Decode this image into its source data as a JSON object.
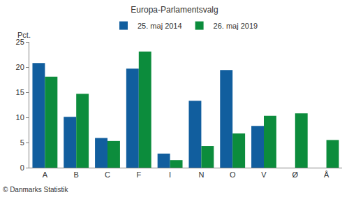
{
  "chart_data": {
    "type": "bar",
    "title": "Europa-Parlamentsvalg",
    "ylabel": "Pct.",
    "annotations": [
      {
        "text": "© Danmarks Statistik"
      }
    ],
    "categories": [
      "A",
      "B",
      "C",
      "F",
      "I",
      "N",
      "O",
      "V",
      "Ø",
      "Å"
    ],
    "series": [
      {
        "name": "25. maj 2014",
        "color": "#115e9e",
        "values": [
          20.8,
          10.1,
          5.9,
          19.7,
          2.8,
          13.3,
          19.4,
          8.3,
          null,
          null
        ]
      },
      {
        "name": "26. maj 2019",
        "color": "#0c8c3c",
        "values": [
          18.1,
          14.7,
          5.3,
          23.1,
          1.5,
          4.3,
          6.8,
          10.3,
          10.8,
          5.5
        ]
      }
    ],
    "ylim": [
      0,
      25
    ],
    "yticks": [
      0,
      5,
      10,
      15,
      20,
      25
    ],
    "grid": false,
    "legend": "top"
  }
}
